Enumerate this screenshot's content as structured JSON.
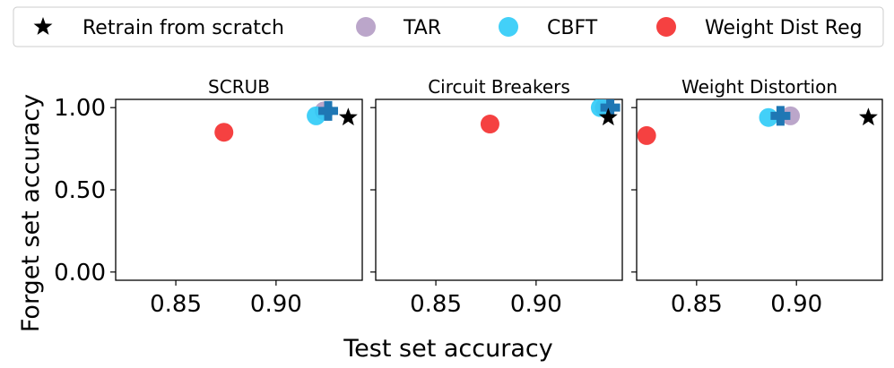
{
  "colors": {
    "retrain": "#000000",
    "tar": "#b49cc4",
    "cbft": "#2ecbf7",
    "weight_dist_reg": "#f42c2c",
    "original": "#1f77b4"
  },
  "legend": {
    "placement": "top",
    "entries": [
      {
        "key": "retrain",
        "label": "Retrain from scratch",
        "marker": "star-icon"
      },
      {
        "key": "tar",
        "label": "TAR",
        "marker": "circle-icon"
      },
      {
        "key": "cbft",
        "label": "CBFT",
        "marker": "circle-icon"
      },
      {
        "key": "weight_dist_reg",
        "label": "Weight Dist Reg",
        "marker": "circle-icon"
      }
    ]
  },
  "figure": {
    "xlabel": "Test set accuracy",
    "ylabel": "Forget set accuracy"
  },
  "chart_data": [
    {
      "type": "scatter",
      "title": "SCRUB",
      "xlim": [
        0.82,
        0.943
      ],
      "ylim": [
        -0.05,
        1.05
      ],
      "xticks": [
        "0.85",
        "0.90"
      ],
      "yticks": [
        "0.00",
        "0.50",
        "1.00"
      ],
      "grid": false,
      "points": [
        {
          "series": "weight_dist_reg",
          "x": 0.874,
          "y": 0.85
        },
        {
          "series": "tar",
          "x": 0.924,
          "y": 0.98
        },
        {
          "series": "cbft",
          "x": 0.92,
          "y": 0.95
        },
        {
          "series": "original",
          "x": 0.926,
          "y": 0.98
        },
        {
          "series": "retrain",
          "x": 0.936,
          "y": 0.94
        }
      ]
    },
    {
      "type": "scatter",
      "title": "Circuit Breakers",
      "xlim": [
        0.82,
        0.943
      ],
      "ylim": [
        -0.05,
        1.05
      ],
      "xticks": [
        "0.85",
        "0.90"
      ],
      "yticks": [
        "0.00",
        "0.50",
        "1.00"
      ],
      "grid": false,
      "points": [
        {
          "series": "weight_dist_reg",
          "x": 0.877,
          "y": 0.9
        },
        {
          "series": "tar",
          "x": 0.934,
          "y": 1.0
        },
        {
          "series": "cbft",
          "x": 0.932,
          "y": 1.0
        },
        {
          "series": "original",
          "x": 0.937,
          "y": 1.0
        },
        {
          "series": "retrain",
          "x": 0.936,
          "y": 0.94
        }
      ]
    },
    {
      "type": "scatter",
      "title": "Weight Distortion",
      "xlim": [
        0.82,
        0.943
      ],
      "ylim": [
        -0.05,
        1.05
      ],
      "xticks": [
        "0.85",
        "0.90"
      ],
      "yticks": [
        "0.00",
        "0.50",
        "1.00"
      ],
      "grid": false,
      "points": [
        {
          "series": "weight_dist_reg",
          "x": 0.825,
          "y": 0.83
        },
        {
          "series": "tar",
          "x": 0.897,
          "y": 0.95
        },
        {
          "series": "cbft",
          "x": 0.886,
          "y": 0.94
        },
        {
          "series": "original",
          "x": 0.892,
          "y": 0.95
        },
        {
          "series": "retrain",
          "x": 0.936,
          "y": 0.94
        }
      ]
    }
  ]
}
